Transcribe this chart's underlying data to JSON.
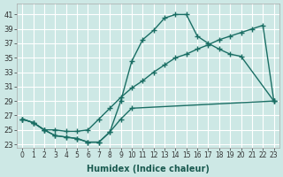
{
  "title": "",
  "xlabel": "Humidex (Indice chaleur)",
  "ylabel": "",
  "bg_color": "#cde8e5",
  "grid_color": "#ffffff",
  "line_color": "#1a6e64",
  "xlim": [
    -0.5,
    23.5
  ],
  "ylim": [
    22.5,
    42.5
  ],
  "xticks": [
    0,
    1,
    2,
    3,
    4,
    5,
    6,
    7,
    8,
    9,
    10,
    11,
    12,
    13,
    14,
    15,
    16,
    17,
    18,
    19,
    20,
    21,
    22,
    23
  ],
  "yticks": [
    23,
    25,
    27,
    29,
    31,
    33,
    35,
    37,
    39,
    41
  ],
  "line1_x": [
    0,
    1,
    2,
    3,
    4,
    5,
    6,
    7,
    8,
    9,
    10,
    11,
    12,
    13,
    14,
    15,
    16,
    17,
    18,
    19,
    20,
    23
  ],
  "line1_y": [
    26.5,
    26.0,
    25.0,
    24.2,
    24.0,
    23.8,
    23.3,
    23.3,
    24.7,
    29.0,
    34.5,
    37.5,
    38.8,
    40.5,
    41.0,
    41.0,
    38.0,
    37.0,
    36.2,
    35.5,
    35.2,
    29.0
  ],
  "line2_x": [
    0,
    1,
    2,
    3,
    4,
    5,
    6,
    7,
    8,
    9,
    10,
    11,
    12,
    13,
    14,
    15,
    16,
    17,
    18,
    19,
    20,
    21,
    22,
    23
  ],
  "line2_y": [
    26.5,
    26.0,
    25.0,
    25.0,
    24.8,
    24.8,
    25.0,
    26.5,
    28.0,
    29.5,
    30.8,
    31.8,
    33.0,
    34.0,
    35.0,
    35.5,
    36.2,
    36.8,
    37.5,
    38.0,
    38.5,
    39.0,
    39.5,
    29.0
  ],
  "line3_x": [
    0,
    1,
    2,
    3,
    4,
    5,
    6,
    7,
    8,
    9,
    10,
    23
  ],
  "line3_y": [
    26.5,
    26.0,
    25.0,
    24.2,
    24.0,
    23.8,
    23.3,
    23.3,
    24.7,
    26.5,
    28.0,
    29.0
  ]
}
